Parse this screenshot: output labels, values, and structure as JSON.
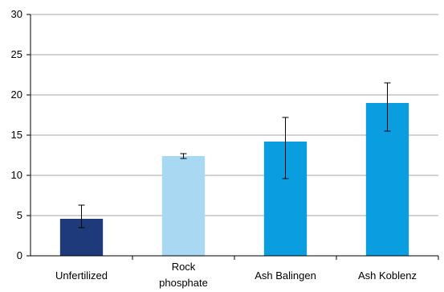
{
  "chart_data": {
    "type": "bar",
    "categories": [
      "Unfertilized",
      "Rock phosphate",
      "Ash Balingen",
      "Ash Koblenz"
    ],
    "category_lines": [
      [
        "Unfertilized"
      ],
      [
        "Rock",
        "phosphate"
      ],
      [
        "Ash Balingen"
      ],
      [
        "Ash Koblenz"
      ]
    ],
    "values": [
      4.6,
      12.4,
      14.2,
      19.0
    ],
    "error_low": [
      3.5,
      12.1,
      9.6,
      15.5
    ],
    "error_high": [
      6.3,
      12.7,
      17.2,
      21.5
    ],
    "bar_colors": [
      "#1e3a7b",
      "#a8d8f2",
      "#0a9ee0",
      "#0a9ee0"
    ],
    "yticks": [
      0,
      5,
      10,
      15,
      20,
      25,
      30
    ],
    "ylim": [
      0,
      30
    ],
    "grid": true,
    "title": "",
    "xlabel": "",
    "ylabel": ""
  }
}
